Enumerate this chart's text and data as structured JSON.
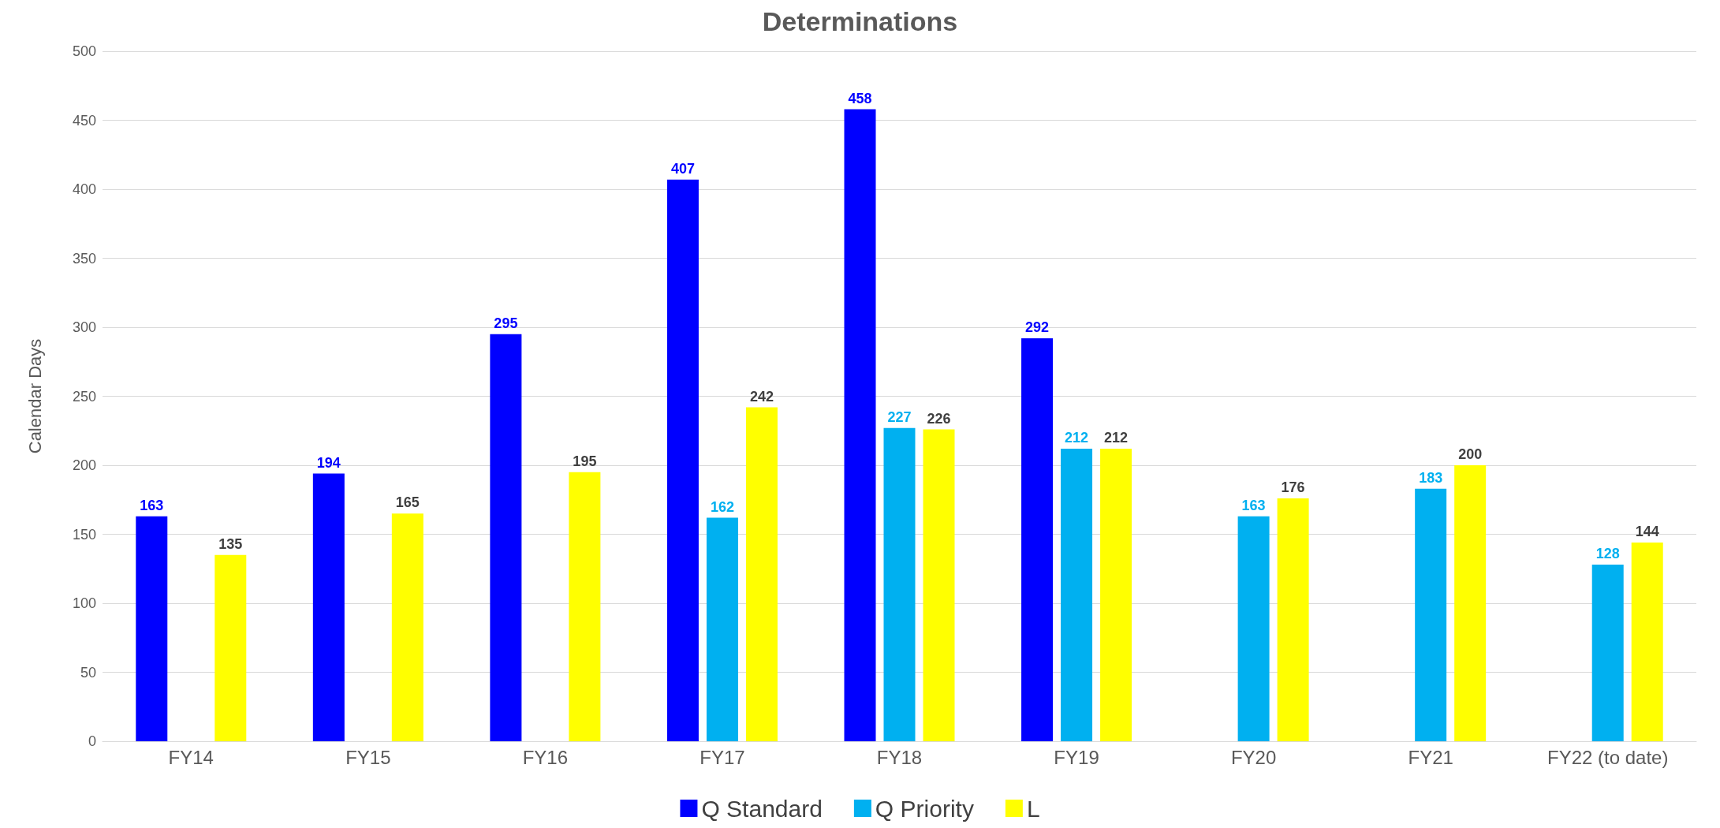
{
  "chart_data": {
    "type": "bar",
    "title": "Determinations",
    "ylabel": "Calendar Days",
    "categories": [
      "FY14",
      "FY15",
      "FY16",
      "FY17",
      "FY18",
      "FY19",
      "FY20",
      "FY21",
      "FY22 (to date)"
    ],
    "series": [
      {
        "name": "Q Standard",
        "color": "#0000ff",
        "values": [
          163,
          194,
          295,
          407,
          458,
          292,
          null,
          null,
          null
        ]
      },
      {
        "name": "Q Priority",
        "color": "#00b0f0",
        "values": [
          null,
          null,
          null,
          162,
          227,
          212,
          163,
          183,
          128
        ]
      },
      {
        "name": "L",
        "color": "#ffff00",
        "values": [
          135,
          165,
          195,
          242,
          226,
          212,
          176,
          200,
          144
        ]
      }
    ],
    "ylim": [
      0,
      500
    ],
    "yticks": [
      0,
      50,
      100,
      150,
      200,
      250,
      300,
      350,
      400,
      450,
      500
    ],
    "grid": "y",
    "legend": "bottom",
    "data_labels": true
  }
}
